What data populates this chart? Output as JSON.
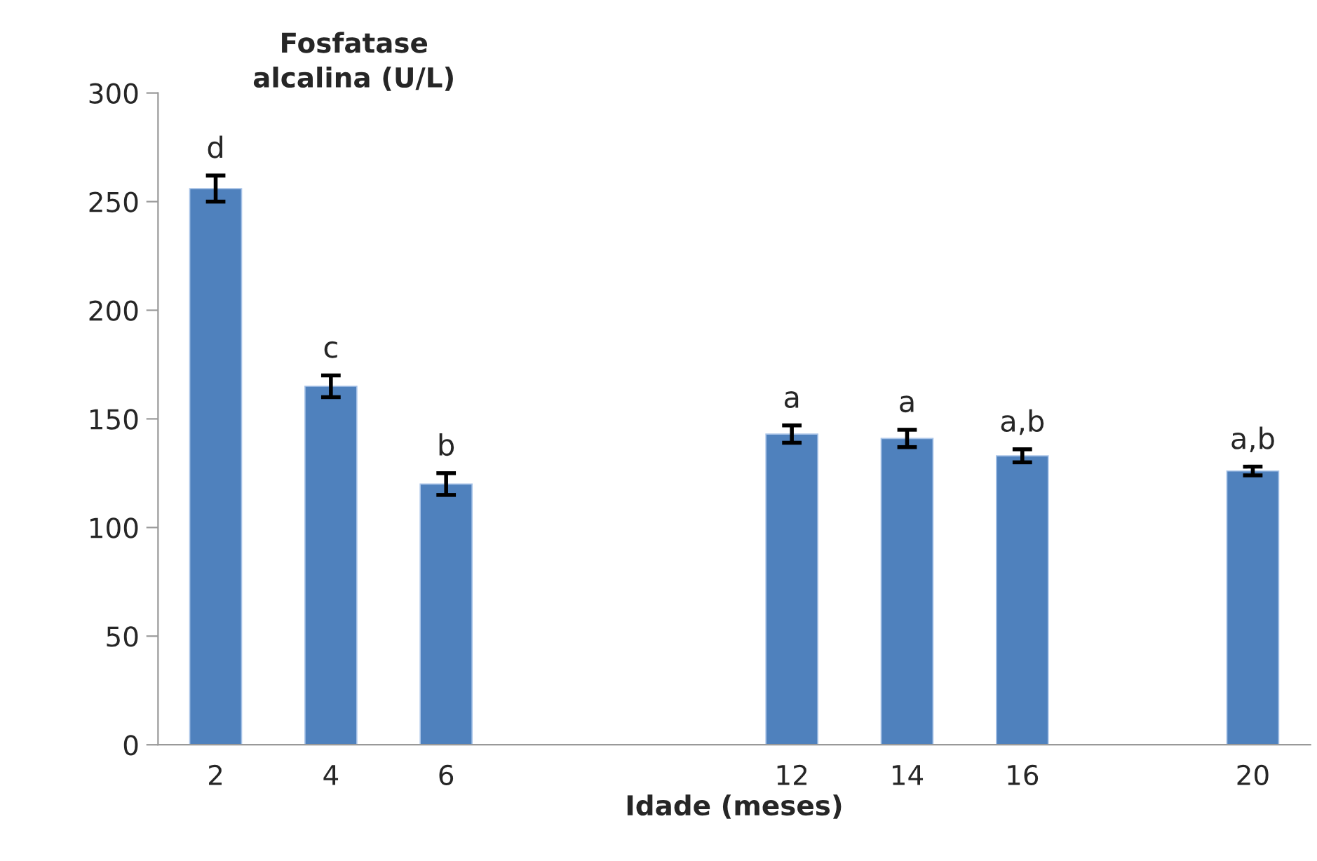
{
  "chart_data": {
    "type": "bar",
    "ylabel": "Fosfatase\nalcalina (U/L)",
    "xlabel": "Idade (meses)",
    "categories": [
      "2",
      "4",
      "6",
      null,
      null,
      "12",
      "14",
      "16",
      null,
      "20"
    ],
    "values": [
      256,
      165,
      120,
      null,
      null,
      143,
      141,
      133,
      null,
      126
    ],
    "errors": [
      6,
      5,
      5,
      null,
      null,
      4,
      4,
      3,
      null,
      2
    ],
    "color": "#4f81bd",
    "ylim": [
      0,
      300
    ],
    "yticks": [
      0,
      50,
      100,
      150,
      200,
      250,
      300
    ],
    "grid": false,
    "legend": false,
    "annotations": [
      {
        "text": "d",
        "x": "2",
        "y": 262
      },
      {
        "text": "c",
        "x": "4",
        "y": 170
      },
      {
        "text": "b",
        "x": "6",
        "y": 125
      },
      {
        "text": "a",
        "x": "12",
        "y": 147
      },
      {
        "text": "a",
        "x": "14",
        "y": 145
      },
      {
        "text": "a,b",
        "x": "16",
        "y": 136
      },
      {
        "text": "a,b",
        "x": "20",
        "y": 128
      }
    ]
  }
}
